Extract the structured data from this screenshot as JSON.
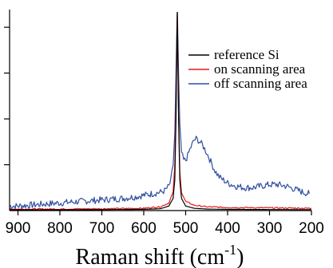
{
  "chart_data": {
    "type": "line",
    "title": "",
    "xlabel": "Raman shift (cm",
    "xlabel_superscript": "-1",
    "xlabel_suffix": ")",
    "ylabel": "",
    "xlim": [
      920,
      200
    ],
    "x_reversed": true,
    "ylim": [
      0,
      1.3
    ],
    "x_ticks": [
      900,
      800,
      700,
      600,
      500,
      400,
      300,
      200
    ],
    "x_tick_labels": [
      "900",
      "800",
      "700",
      "600",
      "500",
      "400",
      "300",
      "200"
    ],
    "y_ticks": [
      0.3,
      0.6,
      0.9,
      1.2
    ],
    "y_tick_labels_shown": false,
    "grid": false,
    "legend_position": "top-right",
    "series": [
      {
        "name": "reference Si",
        "color": "#000000",
        "x": [
          920,
          800,
          700,
          600,
          560,
          540,
          530,
          526,
          523,
          521,
          520,
          519,
          517,
          514,
          510,
          500,
          480,
          450,
          400,
          300,
          200
        ],
        "y": [
          0.005,
          0.005,
          0.006,
          0.008,
          0.012,
          0.03,
          0.08,
          0.2,
          0.6,
          1.1,
          1.3,
          1.1,
          0.6,
          0.2,
          0.08,
          0.03,
          0.015,
          0.01,
          0.008,
          0.007,
          0.006
        ]
      },
      {
        "name": "on scanning area",
        "color": "#e41a1c",
        "x": [
          920,
          800,
          700,
          600,
          560,
          540,
          530,
          526,
          523,
          521,
          520,
          519,
          517,
          514,
          510,
          500,
          480,
          450,
          400,
          300,
          200
        ],
        "y": [
          0.01,
          0.01,
          0.012,
          0.015,
          0.025,
          0.05,
          0.12,
          0.3,
          0.7,
          1.15,
          1.3,
          1.1,
          0.65,
          0.25,
          0.12,
          0.06,
          0.035,
          0.025,
          0.02,
          0.018,
          0.015
        ]
      },
      {
        "name": "off scanning area",
        "color": "#2f4fa0",
        "x": [
          920,
          900,
          850,
          800,
          750,
          700,
          650,
          620,
          600,
          580,
          560,
          550,
          540,
          535,
          530,
          526,
          523,
          521,
          520,
          519,
          517,
          514,
          510,
          505,
          500,
          495,
          490,
          485,
          480,
          475,
          470,
          460,
          450,
          440,
          430,
          420,
          410,
          400,
          380,
          360,
          340,
          320,
          300,
          280,
          260,
          240,
          220,
          205
        ],
        "y": [
          0.03,
          0.03,
          0.04,
          0.05,
          0.06,
          0.07,
          0.08,
          0.09,
          0.1,
          0.11,
          0.12,
          0.13,
          0.16,
          0.2,
          0.3,
          0.5,
          0.9,
          1.2,
          1.3,
          1.2,
          0.9,
          0.55,
          0.38,
          0.33,
          0.33,
          0.36,
          0.4,
          0.43,
          0.46,
          0.47,
          0.46,
          0.43,
          0.38,
          0.32,
          0.26,
          0.22,
          0.2,
          0.18,
          0.16,
          0.15,
          0.15,
          0.16,
          0.17,
          0.17,
          0.16,
          0.14,
          0.12,
          0.11
        ]
      }
    ]
  }
}
